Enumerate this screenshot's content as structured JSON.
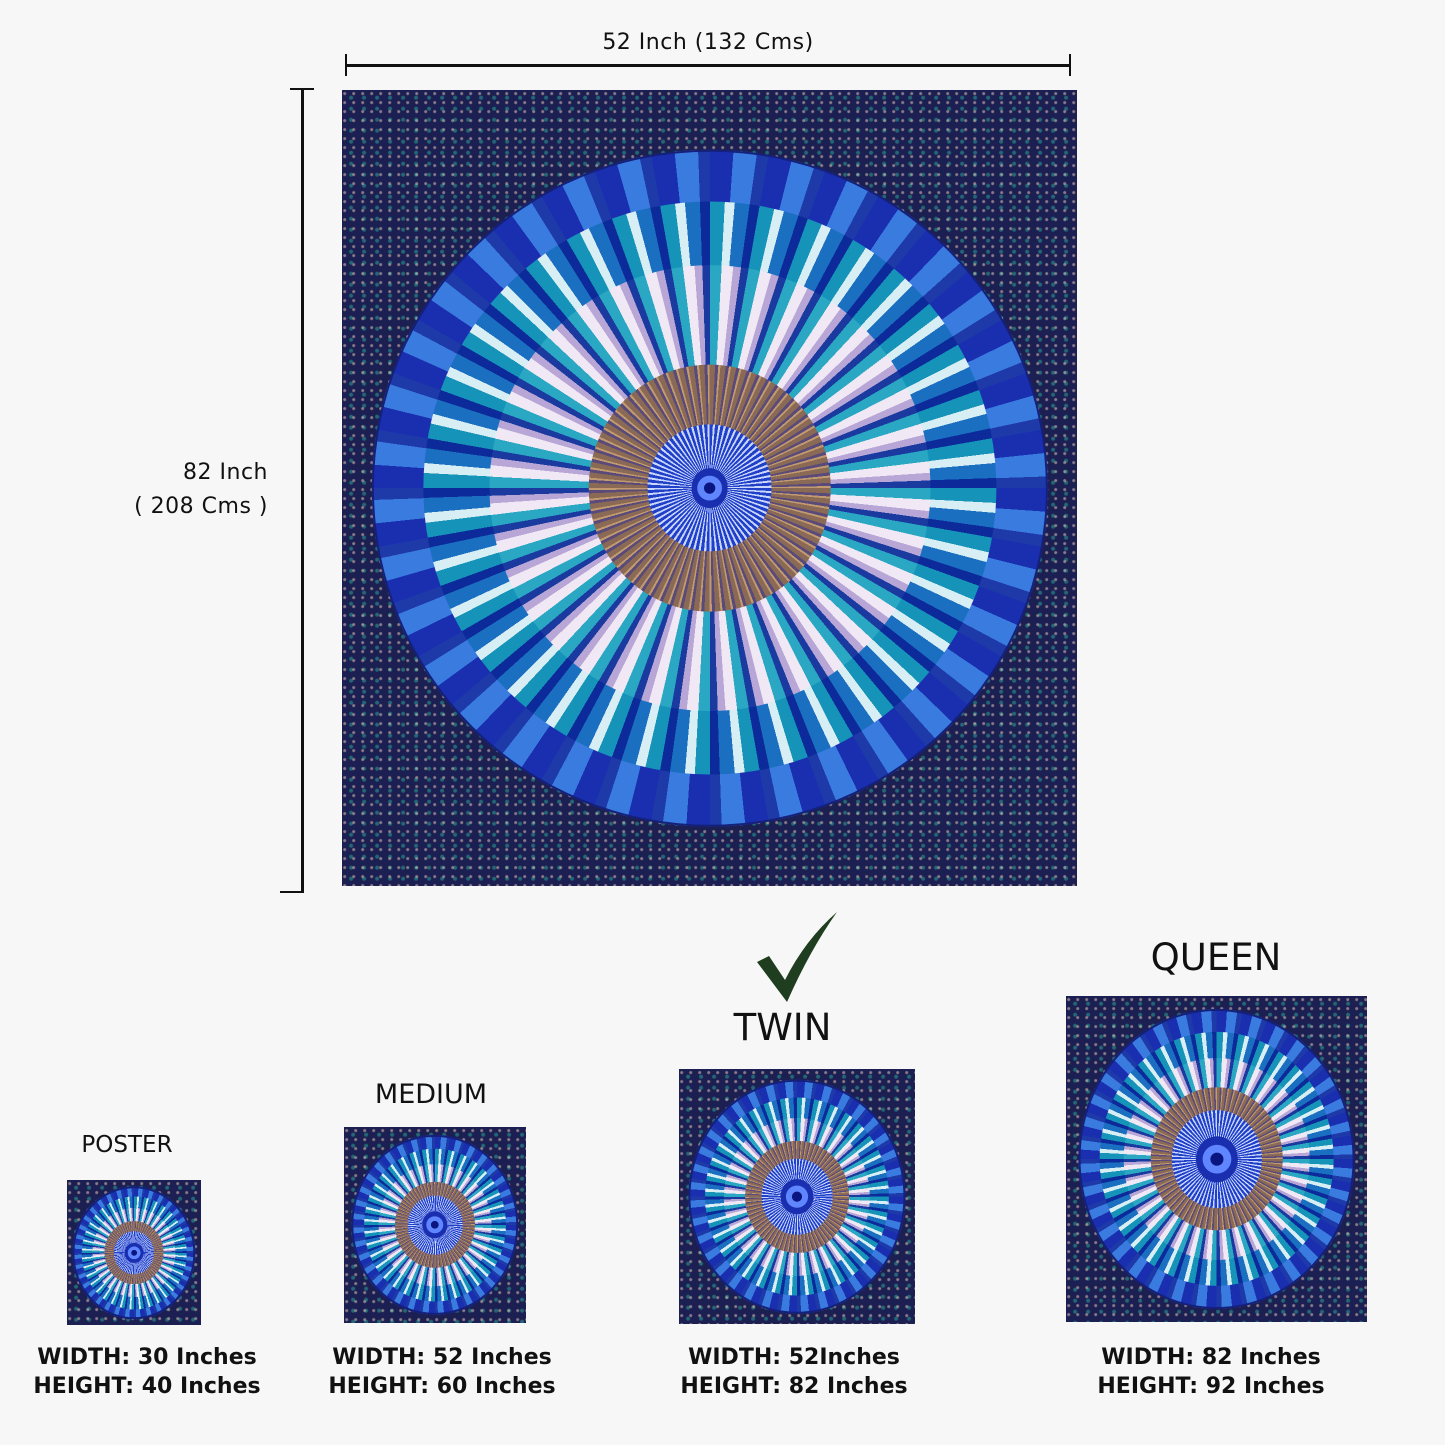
{
  "dimensions": {
    "width_label": "52 Inch (132 Cms)",
    "height_label_line1": "82 Inch",
    "height_label_line2": "( 208 Cms )"
  },
  "selected_size": "TWIN",
  "colors": {
    "checkmark": "#1f3d1f",
    "mandala_primary": "#1a2fb0",
    "mandala_background": "#1c1f52"
  },
  "sizes": [
    {
      "name": "POSTER",
      "width": "WIDTH: 30 Inches",
      "height": "HEIGHT: 40 Inches"
    },
    {
      "name": "MEDIUM",
      "width": "WIDTH: 52 Inches",
      "height": "HEIGHT: 60 Inches"
    },
    {
      "name": "TWIN",
      "width": "WIDTH: 52Inches",
      "height": "HEIGHT: 82 Inches"
    },
    {
      "name": "QUEEN",
      "width": "WIDTH: 82 Inches",
      "height": "HEIGHT: 92 Inches"
    }
  ]
}
